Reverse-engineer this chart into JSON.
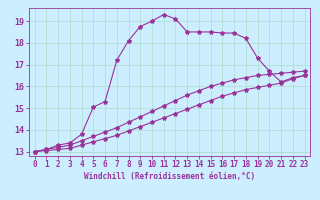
{
  "xlabel": "Windchill (Refroidissement éolien,°C)",
  "bg_color": "#cceeff",
  "line_color": "#993399",
  "grid_color": "#aaddcc",
  "xlim": [
    -0.5,
    23.5
  ],
  "ylim": [
    12.8,
    19.6
  ],
  "xticks": [
    0,
    1,
    2,
    3,
    4,
    5,
    6,
    7,
    8,
    9,
    10,
    11,
    12,
    13,
    14,
    15,
    16,
    17,
    18,
    19,
    20,
    21,
    22,
    23
  ],
  "yticks": [
    13,
    14,
    15,
    16,
    17,
    18,
    19
  ],
  "line1_x": [
    0,
    1,
    2,
    3,
    4,
    5,
    6,
    7,
    8,
    9,
    10,
    11,
    12,
    13,
    14,
    15,
    16,
    17,
    18,
    19,
    20,
    21,
    22,
    23
  ],
  "line1_y": [
    13.0,
    13.05,
    13.1,
    13.15,
    13.3,
    13.45,
    13.6,
    13.75,
    13.95,
    14.15,
    14.35,
    14.55,
    14.75,
    14.95,
    15.15,
    15.35,
    15.55,
    15.7,
    15.85,
    15.95,
    16.05,
    16.15,
    16.35,
    16.5
  ],
  "line2_x": [
    0,
    1,
    2,
    3,
    4,
    5,
    6,
    7,
    8,
    9,
    10,
    11,
    12,
    13,
    14,
    15,
    16,
    17,
    18,
    19,
    20,
    21,
    22,
    23
  ],
  "line2_y": [
    13.0,
    13.1,
    13.2,
    13.3,
    13.5,
    13.7,
    13.9,
    14.1,
    14.35,
    14.6,
    14.85,
    15.1,
    15.35,
    15.6,
    15.8,
    16.0,
    16.15,
    16.3,
    16.4,
    16.5,
    16.55,
    16.6,
    16.65,
    16.7
  ],
  "line3_x": [
    0,
    1,
    2,
    3,
    4,
    5,
    6,
    7,
    8,
    9,
    10,
    11,
    12,
    13,
    14,
    15,
    16,
    17,
    18,
    19,
    20,
    21,
    22,
    23
  ],
  "line3_y": [
    13.0,
    13.1,
    13.3,
    13.4,
    13.8,
    15.05,
    15.3,
    17.2,
    18.1,
    18.75,
    19.0,
    19.3,
    19.1,
    18.5,
    18.5,
    18.5,
    18.45,
    18.45,
    18.2,
    17.3,
    16.7,
    16.2,
    16.4,
    16.5
  ],
  "marker": "*",
  "markersize": 3,
  "linewidth": 0.8,
  "tick_fontsize": 5.5,
  "xlabel_fontsize": 5.5
}
